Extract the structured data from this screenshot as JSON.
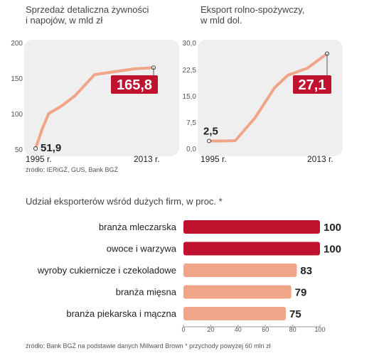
{
  "chart_data": [
    {
      "type": "line",
      "title": "Sprzedaż detaliczna żywności\ni napojów, w mld zł",
      "x_labels": [
        "1995 r.",
        "2013 r."
      ],
      "x": [
        1995,
        1996,
        1997,
        1999,
        2001,
        2004,
        2007,
        2010,
        2013
      ],
      "values": [
        51.9,
        79,
        101,
        112,
        126,
        156,
        160,
        164,
        165.8
      ],
      "y_ticks": [
        "200",
        "150",
        "100",
        "50"
      ],
      "ylim": [
        50,
        200
      ],
      "start_label": "51,9",
      "end_label": "165,8",
      "source": "źródło: IERiGŻ, GUS, Bank BGŻ"
    },
    {
      "type": "line",
      "title": "Eksport rolno-spożywczy,\nw mld dol.",
      "x_labels": [
        "1995 r.",
        "2013 r."
      ],
      "x": [
        1995,
        1997,
        1999,
        2002,
        2005,
        2007,
        2010,
        2013
      ],
      "values": [
        2.5,
        2.5,
        2.6,
        9,
        17.5,
        21,
        23,
        27.1
      ],
      "y_ticks": [
        "30,0",
        "22,5",
        "15,0",
        "7,5",
        "0,0"
      ],
      "ylim": [
        0,
        30
      ],
      "start_label": "2,5",
      "end_label": "27,1"
    },
    {
      "type": "bar",
      "title": "Udział eksporterów wśród dużych firm, w proc. *",
      "categories": [
        "branża mleczarska",
        "owoce i warzywa",
        "wyroby cukiernicze i czekoladowe",
        "branża mięsna",
        "branża piekarska i mączna"
      ],
      "values": [
        100,
        100,
        83,
        79,
        75
      ],
      "value_labels": [
        "100",
        "100",
        "83",
        "79",
        "75"
      ],
      "x_ticks": [
        "0",
        "20",
        "40",
        "60",
        "80",
        "100"
      ],
      "xlim": [
        0,
        100
      ],
      "source": "źródło: Bank BGŻ na podstawie danych Millward Brown * przychody powyżej 60 mln zł"
    }
  ],
  "colors": {
    "line": "#f0a588",
    "panel": "#efefef",
    "label_box": "#c0122e",
    "bar_primary": "#c0122e",
    "bar_secondary": "#f0a588"
  }
}
